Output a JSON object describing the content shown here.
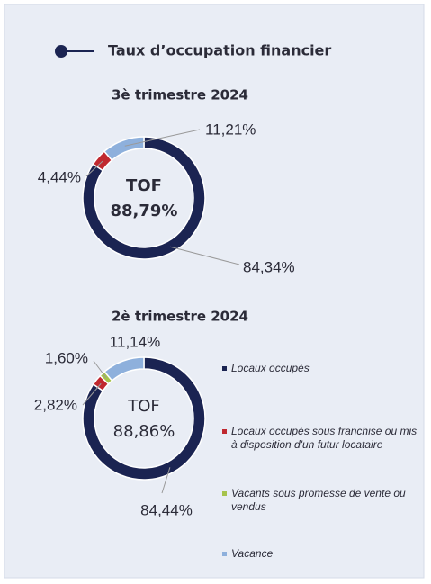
{
  "header": {
    "title": "Taux d’occupation financier"
  },
  "legend": [
    {
      "name": "Locaux occupés",
      "color": "#1b2452"
    },
    {
      "name": "Locaux occupés sous franchise ou mis à disposition d'un futur locataire",
      "color": "#c0282f"
    },
    {
      "name": "Vacants sous promesse de vente ou vendus",
      "color": "#a6c34c"
    },
    {
      "name": "Vacance",
      "color": "#8eb0dc"
    }
  ],
  "chart_data": [
    {
      "type": "pie",
      "title": "3è trimestre 2024",
      "center_label": "TOF",
      "center_value": "88,79%",
      "values": [
        84.34,
        4.44,
        null,
        11.21
      ],
      "value_labels": [
        "84,34%",
        "4,44%",
        null,
        "11,21%"
      ]
    },
    {
      "type": "pie",
      "title": "2è trimestre 2024",
      "center_label": "TOF",
      "center_value": "88,86%",
      "values": [
        84.44,
        2.82,
        1.6,
        11.14
      ],
      "value_labels": [
        "84,44%",
        "2,82%",
        "1,60%",
        "11,14%"
      ]
    }
  ]
}
